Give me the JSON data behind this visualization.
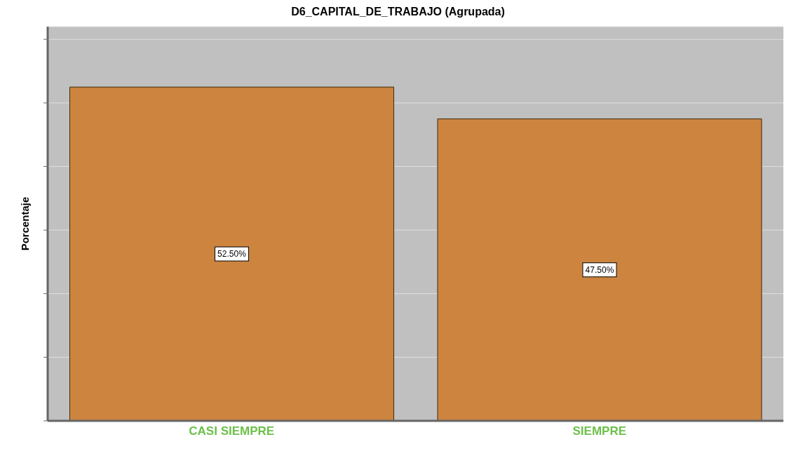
{
  "chart_data": {
    "type": "bar",
    "title": "D6_CAPITAL_DE_TRABAJO (Agrupada)",
    "ylabel": "Porcentaje",
    "categories": [
      "CASI SIEMPRE",
      "SIEMPRE"
    ],
    "values": [
      52.5,
      47.5
    ],
    "value_labels": [
      "52.50%",
      "47.50%"
    ],
    "color": "#cc843f",
    "ylim": [
      0,
      62
    ],
    "yticks": [
      {
        "value": 0,
        "label": null
      },
      {
        "value": 10,
        "label": null
      },
      {
        "value": 20,
        "label": null
      },
      {
        "value": 30,
        "label": null
      },
      {
        "value": 40,
        "label": null
      },
      {
        "value": 50,
        "label": null
      },
      {
        "value": 60,
        "label": null
      }
    ],
    "grid": "y",
    "legend": false
  }
}
